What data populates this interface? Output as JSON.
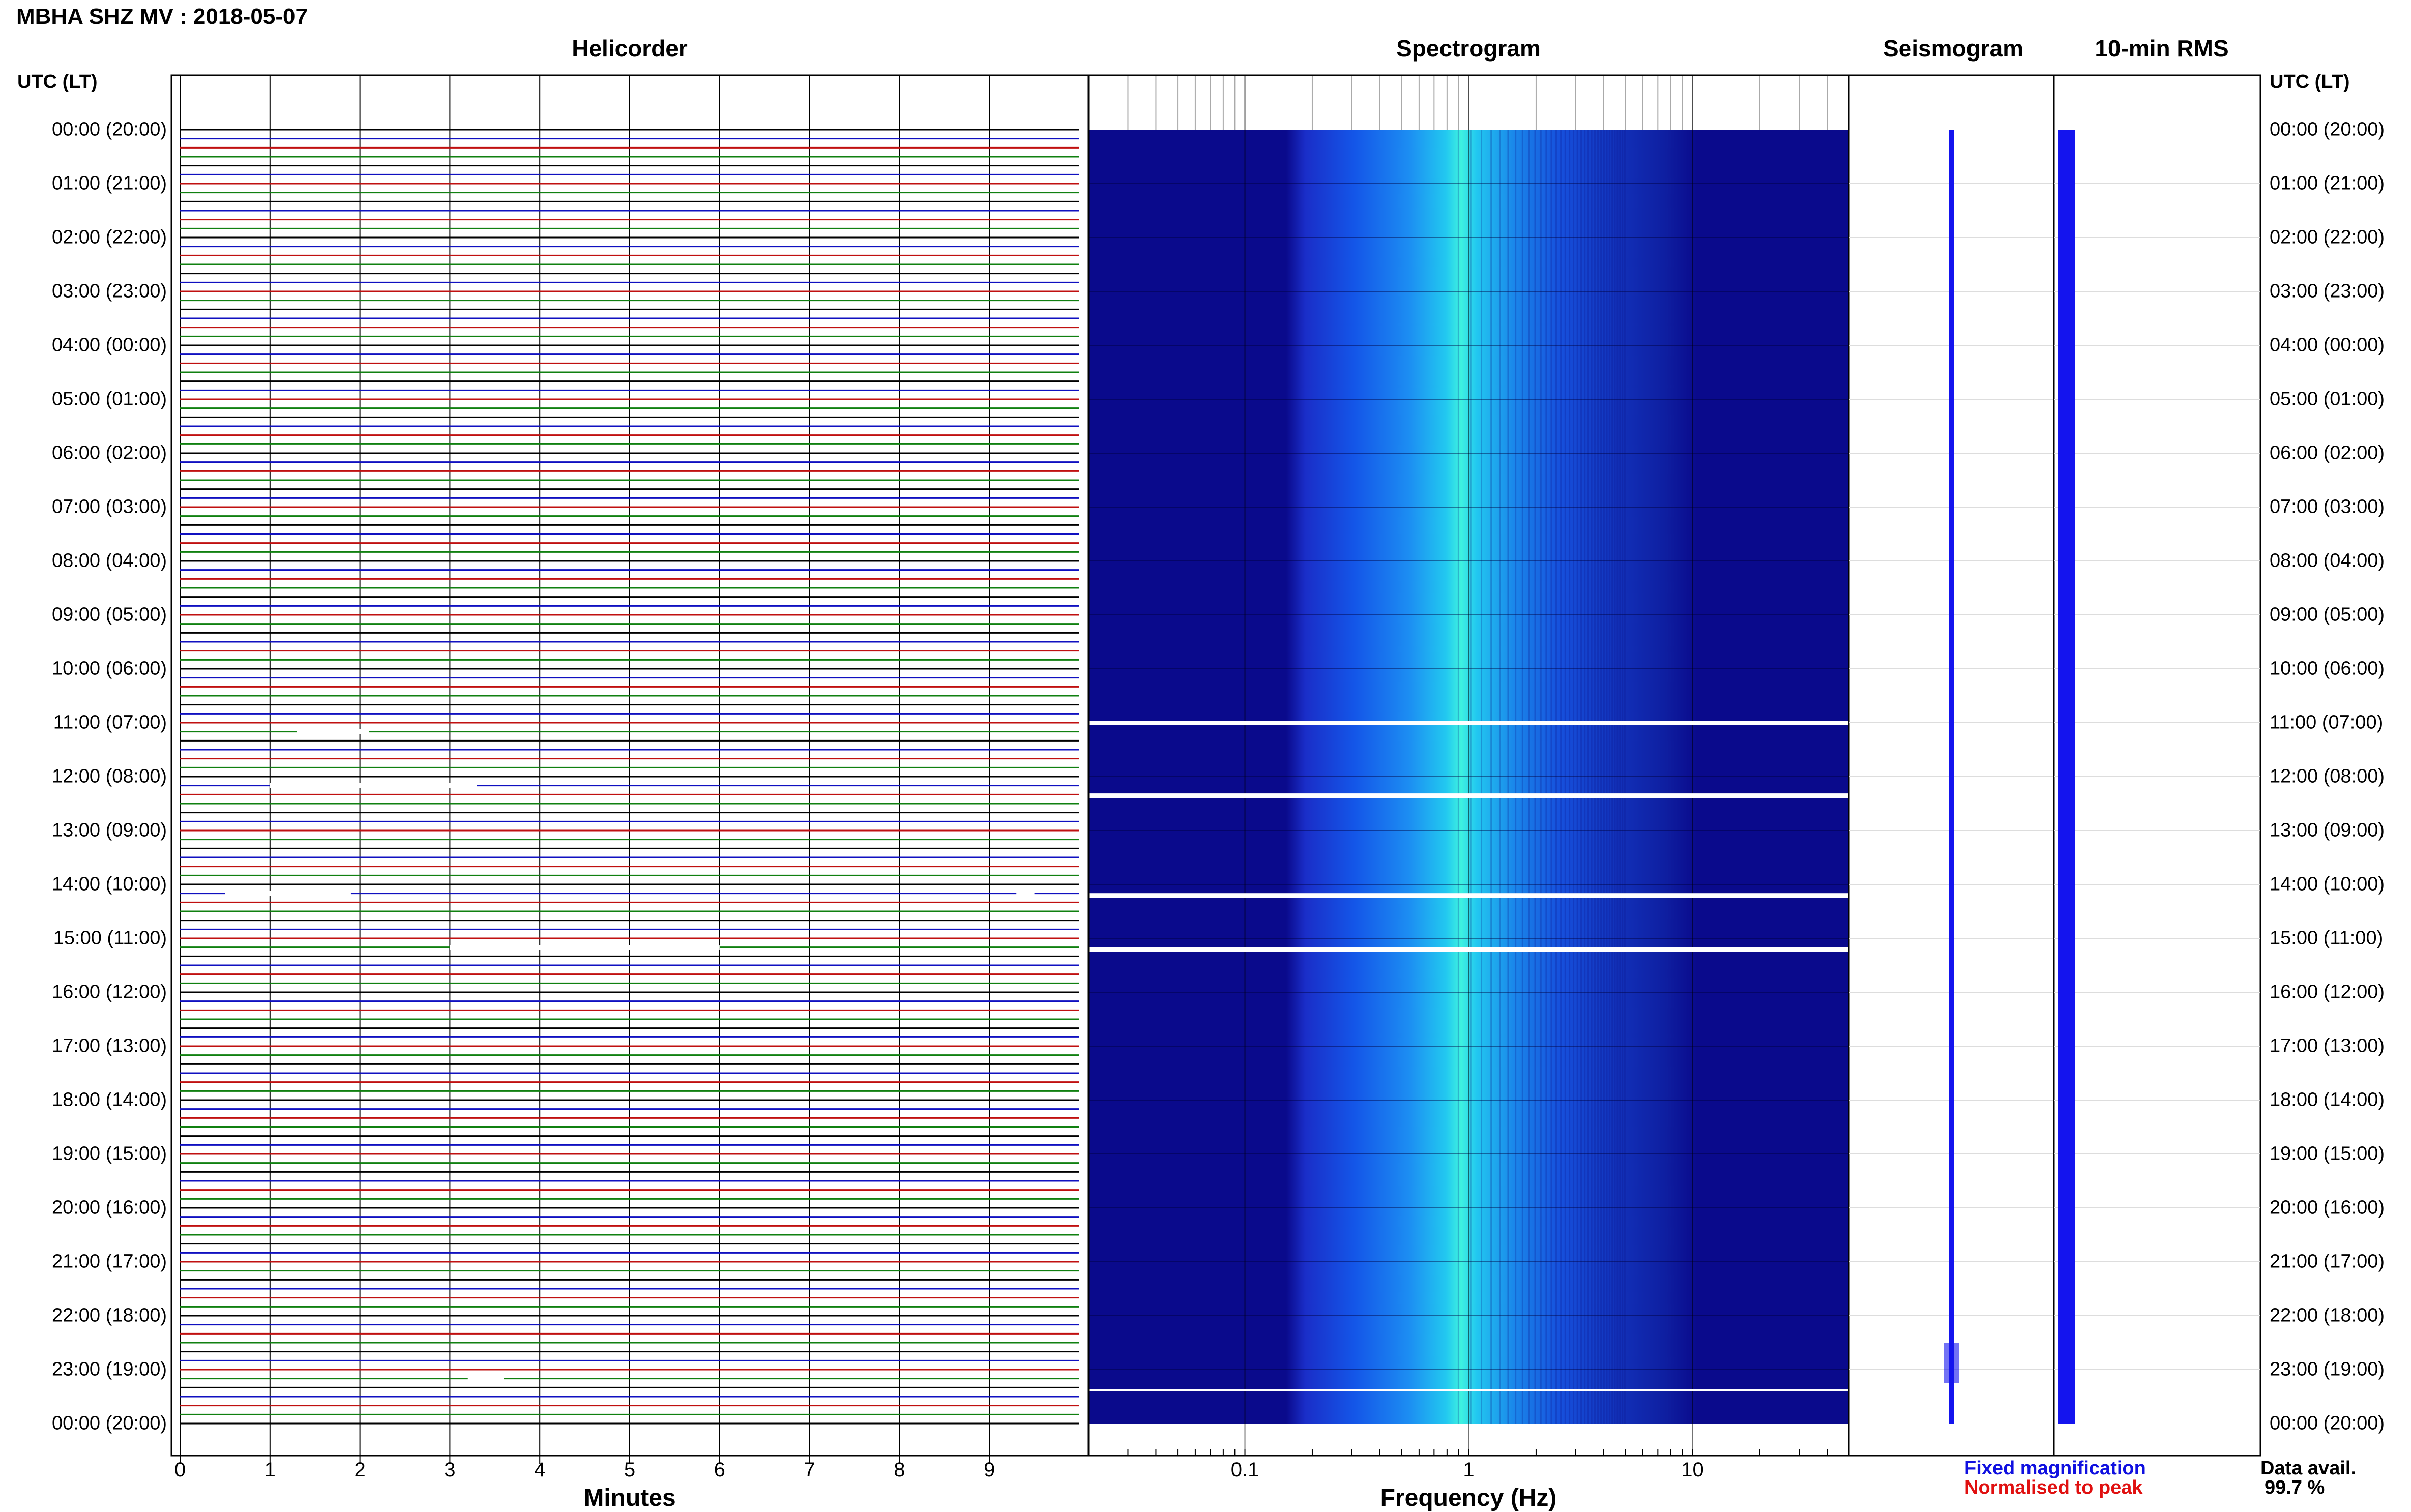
{
  "title": "MBHA SHZ MV : 2018-05-07",
  "panels": {
    "helicorder": "Helicorder",
    "spectrogram": "Spectrogram",
    "seismogram": "Seismogram",
    "rms": "10-min RMS"
  },
  "axis_headers": {
    "left": "UTC (LT)",
    "right": "UTC (LT)"
  },
  "time_labels": [
    "00:00 (20:00)",
    "01:00 (21:00)",
    "02:00 (22:00)",
    "03:00 (23:00)",
    "04:00 (00:00)",
    "05:00 (01:00)",
    "06:00 (02:00)",
    "07:00 (03:00)",
    "08:00 (04:00)",
    "09:00 (05:00)",
    "10:00 (06:00)",
    "11:00 (07:00)",
    "12:00 (08:00)",
    "13:00 (09:00)",
    "14:00 (10:00)",
    "15:00 (11:00)",
    "16:00 (12:00)",
    "17:00 (13:00)",
    "18:00 (14:00)",
    "19:00 (15:00)",
    "20:00 (16:00)",
    "21:00 (17:00)",
    "22:00 (18:00)",
    "23:00 (19:00)",
    "00:00 (20:00)"
  ],
  "minutes_axis": {
    "label": "Minutes",
    "ticks": [
      "0",
      "1",
      "2",
      "3",
      "4",
      "5",
      "6",
      "7",
      "8",
      "9"
    ]
  },
  "frequency_axis": {
    "label": "Frequency (Hz)",
    "ticks": [
      "0.1",
      "1",
      "10"
    ],
    "scale": "log"
  },
  "legend": {
    "fixed": {
      "text": "Fixed magnification",
      "color": "#1010e0"
    },
    "normalised": {
      "text": "Normalised to peak",
      "color": "#e01010"
    }
  },
  "availability": {
    "label": "Data avail.",
    "value": "99.7 %"
  },
  "chart_data": [
    {
      "type": "line",
      "title": "Helicorder",
      "xlabel": "Minutes",
      "xlim": [
        0,
        10
      ],
      "ylabel": "UTC (LT)",
      "trace_colors": [
        "#000000",
        "#1010c0",
        "#c01010",
        "#108010"
      ],
      "traces_per_hour": 6,
      "gaps": [
        {
          "hour": 11,
          "from_min": 1.3,
          "to_min": 2.1
        },
        {
          "hour": 12,
          "from_min": 1.0,
          "to_min": 3.3
        },
        {
          "hour": 14,
          "from_min": 0.5,
          "to_min": 1.9
        },
        {
          "hour": 14,
          "from_min": 9.3,
          "to_min": 9.5
        },
        {
          "hour": 15,
          "from_min": 3.0,
          "to_min": 6.0
        },
        {
          "hour": 23,
          "from_min": 3.2,
          "to_min": 3.6
        }
      ]
    },
    {
      "type": "heatmap",
      "title": "Spectrogram",
      "xlabel": "Frequency (Hz)",
      "xscale": "log",
      "xlim": [
        0.02,
        50
      ],
      "peak_band_hz": [
        0.7,
        1.3
      ],
      "energy_band_hz": [
        0.2,
        5
      ],
      "data_gaps_hours": [
        11.0,
        12.35,
        14.2,
        15.2,
        23.4
      ]
    },
    {
      "type": "line",
      "title": "Seismogram"
    },
    {
      "type": "area",
      "title": "10-min RMS"
    }
  ]
}
